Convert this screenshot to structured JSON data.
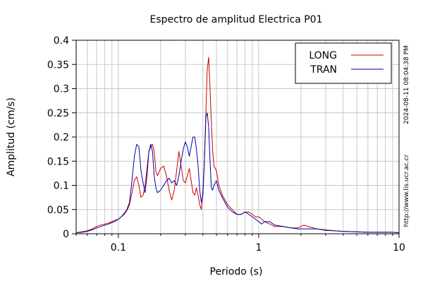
{
  "chart_data": {
    "type": "line",
    "title": "Espectro de amplitud Electrica P01",
    "xlabel": "Periodo (s)",
    "ylabel": "Amplitud (cm/s)",
    "x_scale": "log",
    "xlim": [
      0.05,
      10
    ],
    "ylim": [
      0,
      0.4
    ],
    "grid": true,
    "legend_position": "top-right",
    "x_tick_labels": [
      "0.1",
      "1",
      "10"
    ],
    "x_ticks": [
      0.1,
      1,
      10
    ],
    "y_tick_labels": [
      "0",
      "0.05",
      "0.1",
      "0.15",
      "0.2",
      "0.25",
      "0.3",
      "0.35",
      "0.4"
    ],
    "y_ticks": [
      0,
      0.05,
      0.1,
      0.15,
      0.2,
      0.25,
      0.3,
      0.35,
      0.4
    ],
    "side_texts": {
      "timestamp": "2024-08-11 08:04:38 PM",
      "url": "http://www.lis.ucr.ac.cr"
    },
    "series": [
      {
        "name": "LONG",
        "color": "#cc0000",
        "points": [
          [
            0.05,
            0.002
          ],
          [
            0.055,
            0.004
          ],
          [
            0.06,
            0.006
          ],
          [
            0.065,
            0.01
          ],
          [
            0.07,
            0.015
          ],
          [
            0.075,
            0.018
          ],
          [
            0.08,
            0.02
          ],
          [
            0.085,
            0.022
          ],
          [
            0.09,
            0.025
          ],
          [
            0.095,
            0.028
          ],
          [
            0.1,
            0.03
          ],
          [
            0.105,
            0.035
          ],
          [
            0.11,
            0.04
          ],
          [
            0.115,
            0.048
          ],
          [
            0.12,
            0.06
          ],
          [
            0.125,
            0.085
          ],
          [
            0.13,
            0.11
          ],
          [
            0.135,
            0.118
          ],
          [
            0.14,
            0.1
          ],
          [
            0.145,
            0.075
          ],
          [
            0.15,
            0.08
          ],
          [
            0.155,
            0.1
          ],
          [
            0.16,
            0.135
          ],
          [
            0.165,
            0.17
          ],
          [
            0.17,
            0.18
          ],
          [
            0.175,
            0.185
          ],
          [
            0.18,
            0.17
          ],
          [
            0.185,
            0.13
          ],
          [
            0.19,
            0.12
          ],
          [
            0.2,
            0.135
          ],
          [
            0.21,
            0.14
          ],
          [
            0.22,
            0.12
          ],
          [
            0.23,
            0.09
          ],
          [
            0.24,
            0.07
          ],
          [
            0.25,
            0.09
          ],
          [
            0.26,
            0.13
          ],
          [
            0.27,
            0.17
          ],
          [
            0.28,
            0.14
          ],
          [
            0.29,
            0.11
          ],
          [
            0.3,
            0.105
          ],
          [
            0.31,
            0.12
          ],
          [
            0.32,
            0.135
          ],
          [
            0.33,
            0.11
          ],
          [
            0.34,
            0.085
          ],
          [
            0.35,
            0.08
          ],
          [
            0.36,
            0.095
          ],
          [
            0.37,
            0.08
          ],
          [
            0.38,
            0.06
          ],
          [
            0.39,
            0.05
          ],
          [
            0.4,
            0.09
          ],
          [
            0.41,
            0.15
          ],
          [
            0.42,
            0.25
          ],
          [
            0.43,
            0.34
          ],
          [
            0.44,
            0.365
          ],
          [
            0.45,
            0.3
          ],
          [
            0.46,
            0.23
          ],
          [
            0.47,
            0.17
          ],
          [
            0.48,
            0.14
          ],
          [
            0.5,
            0.13
          ],
          [
            0.52,
            0.1
          ],
          [
            0.55,
            0.08
          ],
          [
            0.6,
            0.06
          ],
          [
            0.65,
            0.05
          ],
          [
            0.7,
            0.04
          ],
          [
            0.75,
            0.04
          ],
          [
            0.8,
            0.045
          ],
          [
            0.85,
            0.045
          ],
          [
            0.9,
            0.04
          ],
          [
            0.95,
            0.035
          ],
          [
            1.0,
            0.035
          ],
          [
            1.05,
            0.03
          ],
          [
            1.1,
            0.025
          ],
          [
            1.2,
            0.02
          ],
          [
            1.3,
            0.015
          ],
          [
            1.5,
            0.015
          ],
          [
            1.7,
            0.012
          ],
          [
            1.9,
            0.012
          ],
          [
            2.0,
            0.015
          ],
          [
            2.1,
            0.018
          ],
          [
            2.3,
            0.014
          ],
          [
            2.6,
            0.01
          ],
          [
            3.0,
            0.008
          ],
          [
            3.5,
            0.006
          ],
          [
            4.0,
            0.005
          ],
          [
            5.0,
            0.004
          ],
          [
            6.0,
            0.003
          ],
          [
            7.0,
            0.003
          ],
          [
            8.0,
            0.003
          ],
          [
            9.0,
            0.003
          ],
          [
            10.0,
            0.002
          ]
        ]
      },
      {
        "name": "TRAN",
        "color": "#0000aa",
        "points": [
          [
            0.05,
            0.002
          ],
          [
            0.055,
            0.003
          ],
          [
            0.06,
            0.005
          ],
          [
            0.065,
            0.008
          ],
          [
            0.07,
            0.012
          ],
          [
            0.075,
            0.015
          ],
          [
            0.08,
            0.018
          ],
          [
            0.085,
            0.02
          ],
          [
            0.09,
            0.023
          ],
          [
            0.095,
            0.026
          ],
          [
            0.1,
            0.03
          ],
          [
            0.105,
            0.035
          ],
          [
            0.11,
            0.042
          ],
          [
            0.115,
            0.05
          ],
          [
            0.12,
            0.065
          ],
          [
            0.125,
            0.11
          ],
          [
            0.13,
            0.16
          ],
          [
            0.135,
            0.185
          ],
          [
            0.14,
            0.18
          ],
          [
            0.145,
            0.13
          ],
          [
            0.15,
            0.105
          ],
          [
            0.155,
            0.085
          ],
          [
            0.16,
            0.12
          ],
          [
            0.165,
            0.17
          ],
          [
            0.17,
            0.185
          ],
          [
            0.175,
            0.17
          ],
          [
            0.18,
            0.12
          ],
          [
            0.185,
            0.095
          ],
          [
            0.19,
            0.085
          ],
          [
            0.2,
            0.09
          ],
          [
            0.21,
            0.1
          ],
          [
            0.22,
            0.11
          ],
          [
            0.23,
            0.115
          ],
          [
            0.24,
            0.105
          ],
          [
            0.25,
            0.11
          ],
          [
            0.26,
            0.1
          ],
          [
            0.27,
            0.12
          ],
          [
            0.28,
            0.15
          ],
          [
            0.29,
            0.175
          ],
          [
            0.3,
            0.19
          ],
          [
            0.31,
            0.18
          ],
          [
            0.32,
            0.16
          ],
          [
            0.33,
            0.18
          ],
          [
            0.34,
            0.2
          ],
          [
            0.35,
            0.2
          ],
          [
            0.36,
            0.175
          ],
          [
            0.37,
            0.14
          ],
          [
            0.38,
            0.09
          ],
          [
            0.39,
            0.065
          ],
          [
            0.4,
            0.08
          ],
          [
            0.41,
            0.15
          ],
          [
            0.42,
            0.24
          ],
          [
            0.43,
            0.25
          ],
          [
            0.44,
            0.22
          ],
          [
            0.45,
            0.15
          ],
          [
            0.46,
            0.095
          ],
          [
            0.47,
            0.09
          ],
          [
            0.48,
            0.1
          ],
          [
            0.5,
            0.11
          ],
          [
            0.52,
            0.09
          ],
          [
            0.55,
            0.075
          ],
          [
            0.6,
            0.055
          ],
          [
            0.65,
            0.045
          ],
          [
            0.7,
            0.04
          ],
          [
            0.75,
            0.04
          ],
          [
            0.8,
            0.045
          ],
          [
            0.85,
            0.04
          ],
          [
            0.9,
            0.035
          ],
          [
            0.95,
            0.03
          ],
          [
            1.0,
            0.025
          ],
          [
            1.05,
            0.02
          ],
          [
            1.1,
            0.025
          ],
          [
            1.2,
            0.025
          ],
          [
            1.3,
            0.018
          ],
          [
            1.5,
            0.015
          ],
          [
            1.7,
            0.012
          ],
          [
            1.9,
            0.01
          ],
          [
            2.0,
            0.01
          ],
          [
            2.1,
            0.01
          ],
          [
            2.3,
            0.01
          ],
          [
            2.6,
            0.01
          ],
          [
            3.0,
            0.007
          ],
          [
            3.5,
            0.006
          ],
          [
            4.0,
            0.005
          ],
          [
            5.0,
            0.004
          ],
          [
            6.0,
            0.003
          ],
          [
            7.0,
            0.003
          ],
          [
            8.0,
            0.003
          ],
          [
            9.0,
            0.003
          ],
          [
            10.0,
            0.002
          ]
        ]
      }
    ]
  }
}
